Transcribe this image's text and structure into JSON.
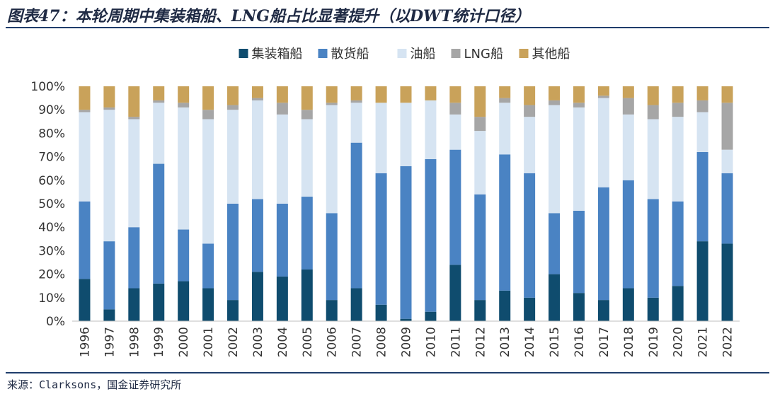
{
  "title": "图表47：本轮周期中集装箱船、LNG船占比显著提升（以DWT统计口径）",
  "source": "来源：Clarksons，国金证券研究所",
  "colors": {
    "container": "#0f4c6e",
    "bulk": "#4a83c3",
    "tanker": "#d6e4f2",
    "lng": "#a6a6a6",
    "other": "#c9a25a",
    "rule": "#1f3d6b",
    "axis": "#bfbfbf"
  },
  "chart_data": {
    "type": "bar",
    "stacked": true,
    "categories": [
      "1996",
      "1997",
      "1998",
      "1999",
      "2000",
      "2001",
      "2002",
      "2003",
      "2004",
      "2005",
      "2006",
      "2007",
      "2008",
      "2009",
      "2010",
      "2011",
      "2012",
      "2013",
      "2014",
      "2015",
      "2016",
      "2017",
      "2018",
      "2019",
      "2020",
      "2021",
      "2022"
    ],
    "ylim": [
      0,
      100
    ],
    "yticks": [
      "0%",
      "10%",
      "20%",
      "30%",
      "40%",
      "50%",
      "60%",
      "70%",
      "80%",
      "90%",
      "100%"
    ],
    "legend_position": "top",
    "series": [
      {
        "name": "集装箱船",
        "color_key": "container",
        "values": [
          18,
          5,
          14,
          16,
          17,
          14,
          9,
          21,
          19,
          22,
          9,
          14,
          7,
          1,
          4,
          24,
          9,
          13,
          10,
          20,
          12,
          9,
          14,
          10,
          15,
          34,
          33
        ]
      },
      {
        "name": "散货船",
        "color_key": "bulk",
        "values": [
          33,
          29,
          26,
          51,
          22,
          19,
          41,
          31,
          31,
          31,
          37,
          62,
          56,
          65,
          65,
          49,
          45,
          58,
          53,
          26,
          35,
          48,
          46,
          42,
          36,
          38,
          30
        ]
      },
      {
        "name": "油船",
        "color_key": "tanker",
        "values": [
          38,
          56,
          46,
          26,
          52,
          53,
          40,
          42,
          38,
          33,
          46,
          17,
          30,
          27,
          25,
          15,
          27,
          22,
          24,
          46,
          44,
          38,
          28,
          34,
          36,
          17,
          10
        ]
      },
      {
        "name": "LNG船",
        "color_key": "lng",
        "values": [
          1,
          1,
          1,
          1,
          2,
          4,
          2,
          1,
          5,
          4,
          1,
          1,
          0,
          0,
          0,
          5,
          6,
          2,
          5,
          2,
          2,
          1,
          7,
          6,
          6,
          5,
          20
        ]
      },
      {
        "name": "其他船",
        "color_key": "other",
        "values": [
          10,
          9,
          13,
          6,
          7,
          10,
          8,
          5,
          7,
          10,
          7,
          6,
          7,
          7,
          6,
          7,
          13,
          5,
          8,
          6,
          7,
          4,
          5,
          8,
          7,
          6,
          7
        ]
      }
    ]
  }
}
